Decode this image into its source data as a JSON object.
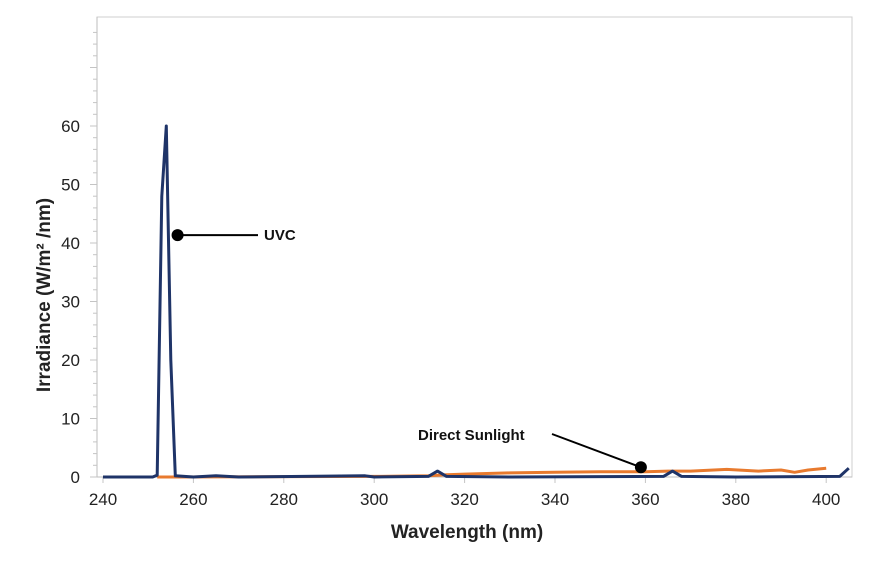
{
  "chart_data": {
    "type": "line",
    "title": "",
    "xlabel": "Wavelength (nm)",
    "ylabel": "Irradiance (W/m² /nm)",
    "xlim": [
      240,
      405
    ],
    "ylim": [
      0,
      78
    ],
    "xticks": [
      240,
      260,
      280,
      300,
      320,
      340,
      360,
      380,
      400
    ],
    "yticks": [
      0,
      10,
      20,
      30,
      40,
      50,
      60
    ],
    "grid": false,
    "series": [
      {
        "name": "UVC",
        "color": "#1f3468",
        "x": [
          240,
          251,
          252,
          253,
          254,
          255,
          256,
          260,
          265,
          270,
          298,
          300,
          312,
          314,
          316,
          330,
          364,
          366,
          368,
          380,
          403,
          405
        ],
        "y": [
          0,
          0,
          0.3,
          48,
          60,
          20,
          0.2,
          0,
          0.2,
          0,
          0.2,
          0,
          0.1,
          1.0,
          0.1,
          0,
          0.1,
          1.0,
          0.1,
          0,
          0.1,
          1.5
        ]
      },
      {
        "name": "Direct Sunlight",
        "color": "#e87a2e",
        "x": [
          252,
          256,
          300,
          312,
          316,
          320,
          330,
          340,
          350,
          360,
          365,
          370,
          378,
          385,
          390,
          393,
          396,
          400
        ],
        "y": [
          0,
          0,
          0.1,
          0.2,
          0.4,
          0.5,
          0.7,
          0.8,
          0.9,
          0.9,
          1.0,
          1.0,
          1.3,
          1.0,
          1.2,
          0.8,
          1.2,
          1.5
        ]
      }
    ],
    "annotations": [
      {
        "text": "UVC",
        "x": 256.5,
        "y": 41
      },
      {
        "text": "Direct Sunlight",
        "x": 359,
        "y": 1.5
      }
    ]
  }
}
